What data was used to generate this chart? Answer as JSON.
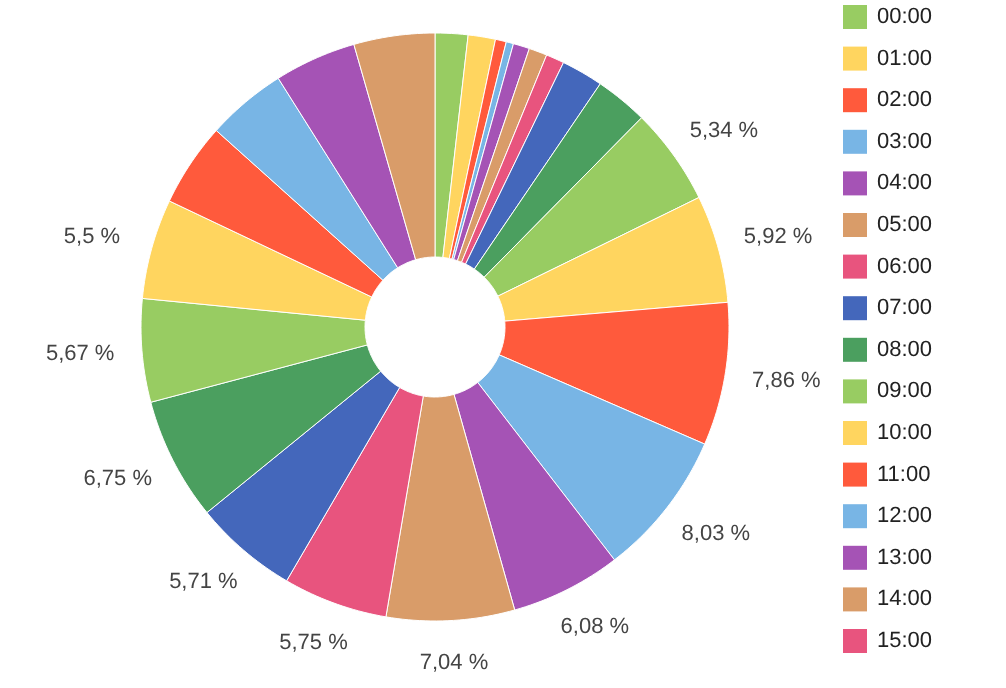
{
  "chart_data": {
    "type": "donut",
    "categories": [
      "00:00",
      "01:00",
      "02:00",
      "03:00",
      "04:00",
      "05:00",
      "06:00",
      "07:00",
      "08:00",
      "09:00",
      "10:00",
      "11:00",
      "12:00",
      "13:00",
      "14:00",
      "15:00",
      null,
      null,
      null,
      null,
      null,
      null,
      null,
      null
    ],
    "values": [
      1.8,
      1.5,
      0.6,
      0.4,
      0.9,
      1.0,
      1.0,
      2.3,
      2.9,
      5.34,
      5.92,
      7.86,
      8.03,
      6.08,
      7.04,
      5.75,
      5.71,
      6.75,
      5.67,
      5.5,
      4.6,
      4.4,
      4.5,
      4.45
    ],
    "colors": [
      "#98cc62",
      "#ffd55f",
      "#ff5a3c",
      "#78b5e5",
      "#a553b5",
      "#d99c69",
      "#e8547e",
      "#4467bb",
      "#4b9f5f",
      "#98cc62",
      "#ffd55f",
      "#ff5a3c",
      "#78b5e5",
      "#a553b5",
      "#d99c69",
      "#e8547e",
      "#4467bb",
      "#4b9f5f",
      "#98cc62",
      "#ffd55f",
      "#ff5a3c",
      "#78b5e5",
      "#a553b5",
      "#d99c69"
    ],
    "value_labels": [
      null,
      null,
      null,
      null,
      null,
      null,
      null,
      null,
      null,
      "5,34 %",
      "5,92 %",
      "7,86 %",
      "8,03 %",
      "6,08 %",
      "7,04 %",
      "5,75 %",
      "5,71 %",
      "6,75 %",
      "5,67 %",
      "5,5 %",
      null,
      null,
      null,
      null
    ],
    "legend": "right"
  }
}
